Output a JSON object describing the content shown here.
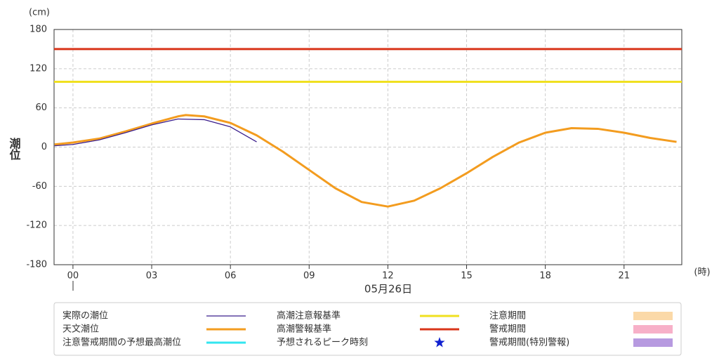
{
  "chart_data": {
    "type": "line",
    "y_unit": "(cm)",
    "y_label": "潮位",
    "x_unit": "(時)",
    "x_label": "05月26日",
    "xlim": [
      -0.72,
      23.2
    ],
    "ylim": [
      -180,
      180
    ],
    "xticks": [
      {
        "value": 0,
        "label": "00"
      },
      {
        "value": 3,
        "label": "03"
      },
      {
        "value": 6,
        "label": "06"
      },
      {
        "value": 9,
        "label": "09"
      },
      12,
      15,
      18,
      21
    ],
    "yticks": [
      -180,
      -120,
      -60,
      0,
      60,
      120,
      180
    ],
    "grid": true,
    "series": [
      {
        "name": "実際の潮位",
        "color": "#3b1e8c",
        "x": [
          -0.7,
          0,
          1,
          2,
          3,
          4,
          5,
          6,
          7
        ],
        "values": [
          2,
          4,
          11,
          22,
          34,
          43,
          42,
          31,
          8
        ]
      },
      {
        "name": "天文潮位",
        "color": "#f39c1f",
        "x": [
          -0.7,
          0,
          1,
          2,
          3,
          4,
          4.3,
          5,
          6,
          7,
          8,
          9,
          10,
          11,
          12,
          13,
          14,
          15,
          16,
          17,
          18,
          19,
          20,
          21,
          22,
          23
        ],
        "values": [
          4,
          7,
          13,
          24,
          36,
          47,
          49,
          47,
          37,
          18,
          -7,
          -35,
          -63,
          -84,
          -91,
          -82,
          -63,
          -40,
          -15,
          7,
          22,
          29,
          28,
          22,
          14,
          8
        ]
      }
    ],
    "reference_lines": [
      {
        "name": "高潮注意報基準",
        "color": "#f0e020",
        "value": 100
      },
      {
        "name": "高潮警報基準",
        "color": "#d9351a",
        "value": 150
      }
    ],
    "legend_extra": [
      {
        "name": "注意警戒期間の予想最高潮位",
        "color": "#33e6f0",
        "symbol": "line"
      },
      {
        "name": "予想されるピーク時刻",
        "color": "#1020d0",
        "symbol": "star"
      },
      {
        "name": "注意期間",
        "color": "#fbd9a8",
        "symbol": "box"
      },
      {
        "name": "警戒期間",
        "color": "#f7b0c8",
        "symbol": "box"
      },
      {
        "name": "警戒期間(特別警報)",
        "color": "#b79ae0",
        "symbol": "box"
      }
    ]
  }
}
